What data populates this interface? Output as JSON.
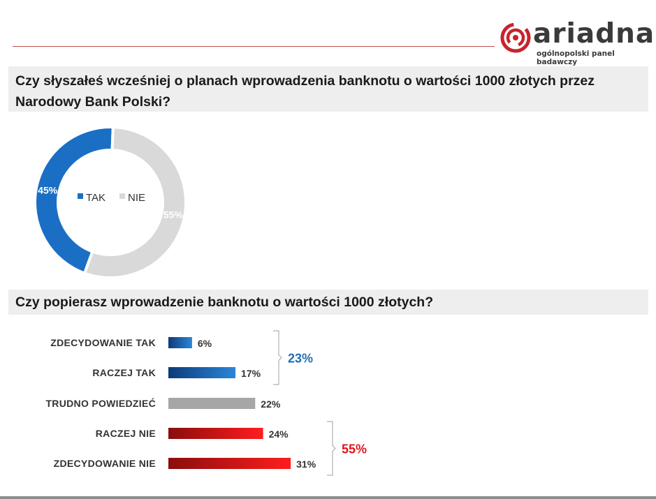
{
  "brand": {
    "name": "ariadna",
    "tagline": "ogólnopolski panel badawczy",
    "accent_color": "#c8232c"
  },
  "questions": {
    "q1": "Czy słyszałeś wcześniej o planach wprowadzenia banknotu o wartości 1000 złotych przez Narodowy Bank Polski?",
    "q2": "Czy popierasz wprowadzenie banknotu o wartości 1000 złotych?"
  },
  "chart_data": [
    {
      "type": "pie",
      "variant": "donut",
      "legend_position": "center",
      "slices": [
        {
          "label": "TAK",
          "value": 45,
          "value_label": "45%",
          "color": "#1a6fc4"
        },
        {
          "label": "NIE",
          "value": 55,
          "value_label": "55%",
          "color": "#d9d9d9"
        }
      ]
    },
    {
      "type": "bar",
      "orientation": "horizontal",
      "categories": [
        "ZDECYDOWANIE  TAK",
        "RACZEJ TAK",
        "TRUDNO  POWIEDZIEĆ",
        "RACZEJ NIE",
        "ZDECYDOWANIE  NIE"
      ],
      "values": [
        6,
        17,
        22,
        24,
        31
      ],
      "value_labels": [
        "6%",
        "17%",
        "22%",
        "24%",
        "31%"
      ],
      "colors": [
        "#1f5fa8",
        "#1f5fa8",
        "#a6a6a6",
        "#d01818",
        "#d01818"
      ],
      "groups": [
        {
          "label": "23%",
          "categories": [
            "ZDECYDOWANIE  TAK",
            "RACZEJ TAK"
          ],
          "color": "#1f6fb5"
        },
        {
          "label": "55%",
          "categories": [
            "RACZEJ NIE",
            "ZDECYDOWANIE  NIE"
          ],
          "color": "#e0151b"
        }
      ]
    }
  ]
}
